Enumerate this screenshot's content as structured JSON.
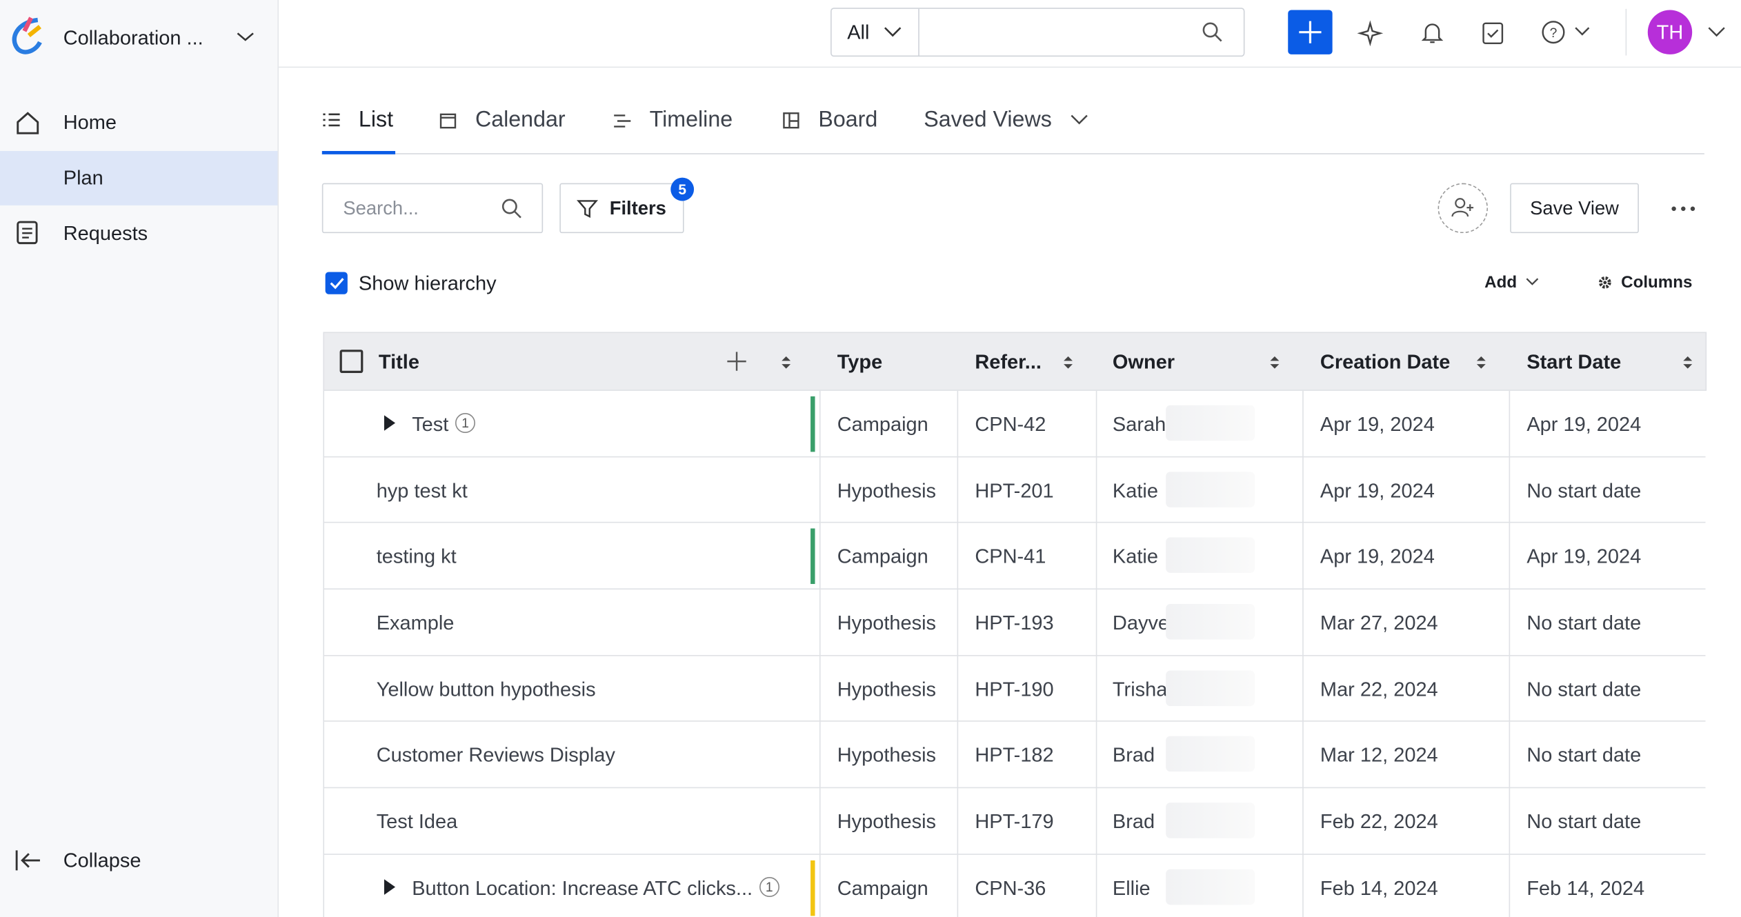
{
  "sidebar": {
    "workspace": "Collaboration ...",
    "nav": [
      "Home",
      "Plan",
      "Requests"
    ],
    "active": 1,
    "collapse": "Collapse"
  },
  "topbar": {
    "scope": "All",
    "avatar": "TH"
  },
  "tabs": [
    "List",
    "Calendar",
    "Timeline",
    "Board",
    "Saved Views"
  ],
  "toolbar": {
    "search_placeholder": "Search...",
    "filters": "Filters",
    "filter_count": 5,
    "save_view": "Save View",
    "show_hierarchy": "Show hierarchy",
    "add": "Add",
    "columns": "Columns"
  },
  "table": {
    "columns": [
      "Title",
      "Type",
      "Refer...",
      "Owner",
      "Creation Date",
      "Start Date"
    ],
    "rows": [
      {
        "title": "Test",
        "child_count": 1,
        "color": "#3a9f6a",
        "type": "Campaign",
        "ref": "CPN-42",
        "owner": "Sarah",
        "created": "Apr 19, 2024",
        "start": "Apr 19, 2024"
      },
      {
        "title": "hyp test kt",
        "type": "Hypothesis",
        "ref": "HPT-201",
        "owner": "Katie",
        "created": "Apr 19, 2024",
        "start": "No start date"
      },
      {
        "title": "testing kt",
        "color": "#3a9f6a",
        "type": "Campaign",
        "ref": "CPN-41",
        "owner": "Katie",
        "created": "Apr 19, 2024",
        "start": "Apr 19, 2024"
      },
      {
        "title": "Example",
        "type": "Hypothesis",
        "ref": "HPT-193",
        "owner": "Dayve",
        "created": "Mar 27, 2024",
        "start": "No start date"
      },
      {
        "title": "Yellow button hypothesis",
        "type": "Hypothesis",
        "ref": "HPT-190",
        "owner": "Trisha",
        "created": "Mar 22, 2024",
        "start": "No start date"
      },
      {
        "title": "Customer Reviews Display",
        "type": "Hypothesis",
        "ref": "HPT-182",
        "owner": "Brad",
        "created": "Mar 12, 2024",
        "start": "No start date"
      },
      {
        "title": "Test Idea",
        "type": "Hypothesis",
        "ref": "HPT-179",
        "owner": "Brad",
        "created": "Feb 22, 2024",
        "start": "No start date"
      },
      {
        "title": "Button Location: Increase ATC clicks...",
        "child_count": 1,
        "color": "#f2c511",
        "type": "Campaign",
        "ref": "CPN-36",
        "owner": "Ellie",
        "created": "Feb 14, 2024",
        "start": "Feb 14, 2024"
      }
    ]
  }
}
